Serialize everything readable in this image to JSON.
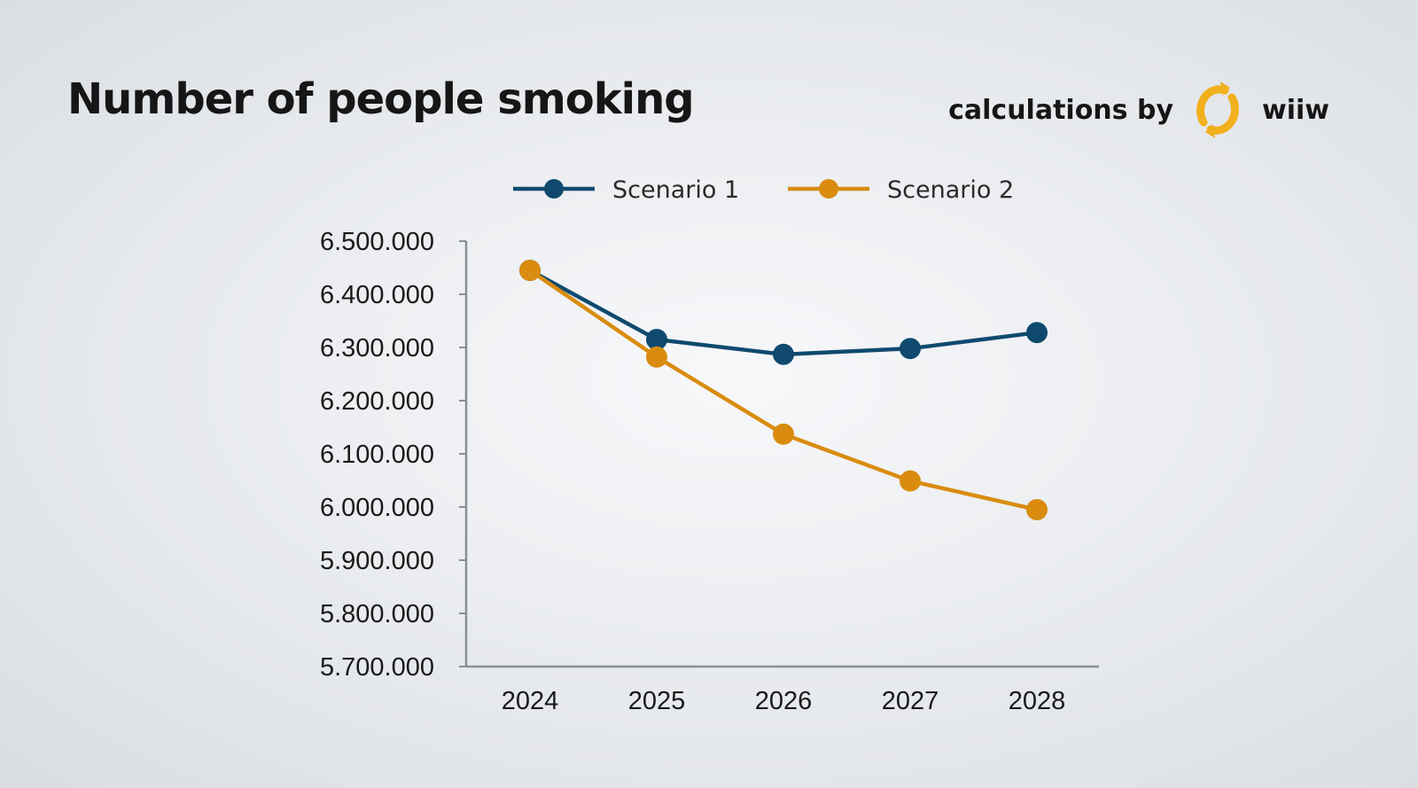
{
  "header": {
    "title": "Number of people smoking",
    "credit_text": "calculations by",
    "brand_name": "wiiw",
    "brand_color": "#f2b01e"
  },
  "chart_data": {
    "type": "line",
    "title": "Number of people smoking",
    "xlabel": "",
    "ylabel": "",
    "categories": [
      "2024",
      "2025",
      "2026",
      "2027",
      "2028"
    ],
    "ylim": [
      5700000,
      6500000
    ],
    "yticks": [
      5700000,
      5800000,
      5900000,
      6000000,
      6100000,
      6200000,
      6300000,
      6400000,
      6500000
    ],
    "ytick_labels": [
      "5.700.000",
      "5.800.000",
      "5.900.000",
      "6.000.000",
      "6.100.000",
      "6.200.000",
      "6.300.000",
      "6.400.000",
      "6.500.000"
    ],
    "grid": false,
    "legend_position": "top",
    "series": [
      {
        "name": "Scenario 1",
        "color": "#0f4a6e",
        "values": [
          6445000,
          6315000,
          6287000,
          6298000,
          6328000
        ]
      },
      {
        "name": "Scenario 2",
        "color": "#d98c0f",
        "values": [
          6445000,
          6282000,
          6137000,
          6049000,
          5995000
        ]
      }
    ]
  }
}
